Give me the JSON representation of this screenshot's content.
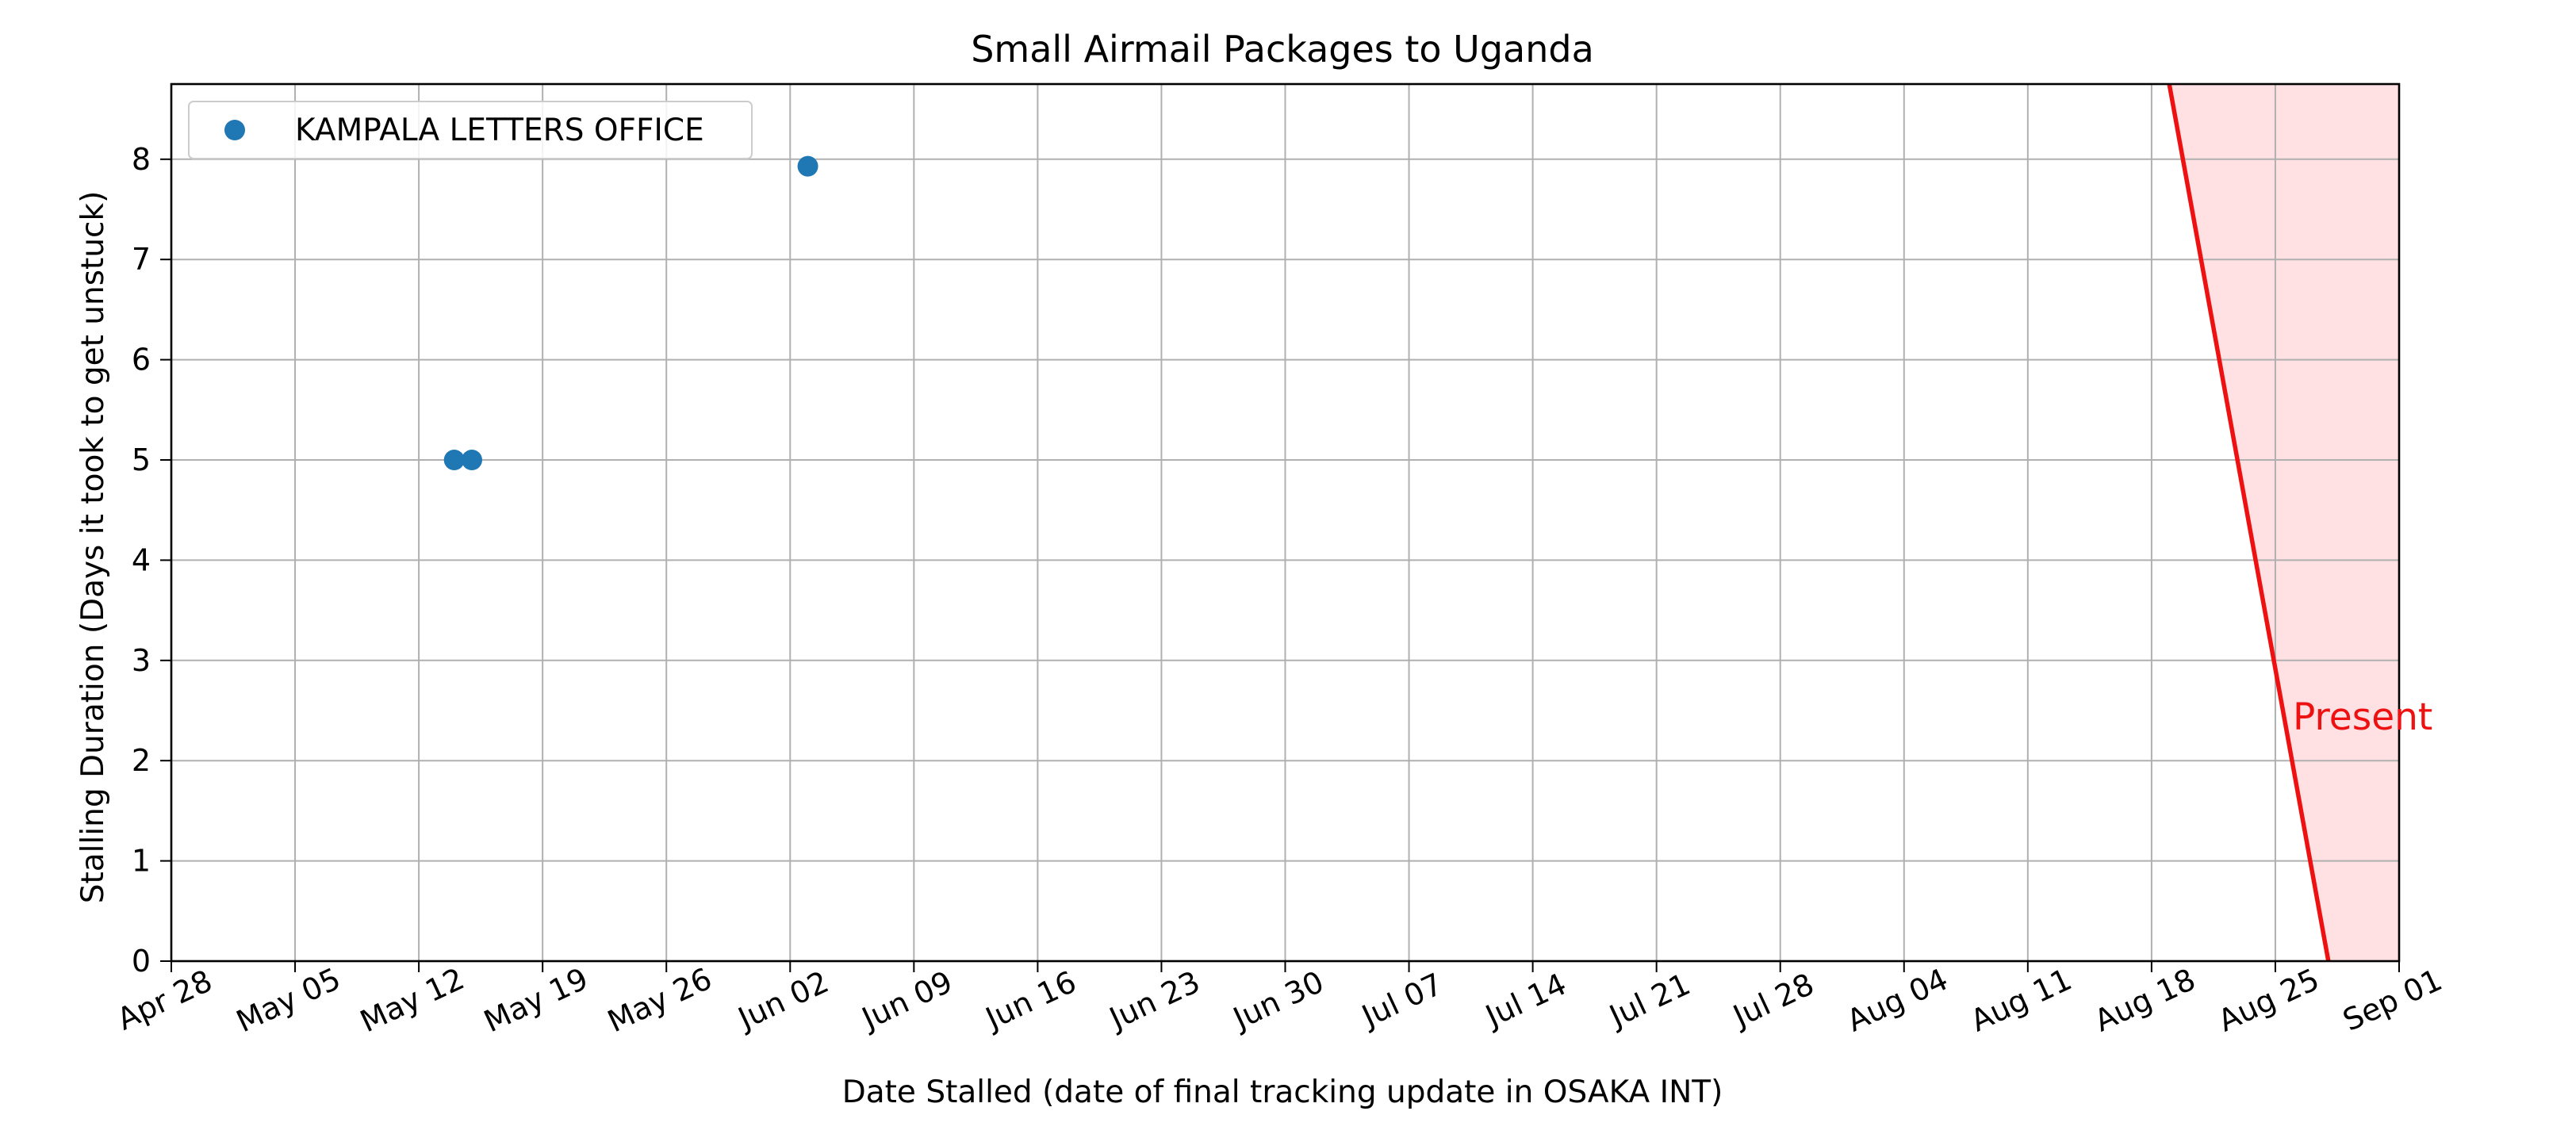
{
  "chart_data": {
    "type": "scatter",
    "title": "Small Airmail Packages to Uganda",
    "xlabel": "Date Stalled (date of final tracking update in OSAKA INT)",
    "ylabel": "Stalling Duration (Days it took to get unstuck)",
    "xlim": [
      "2024-04-28",
      "2024-09-01"
    ],
    "ylim": [
      0,
      8.75
    ],
    "x_ticks": [
      {
        "date": "2024-04-28",
        "label": "Apr 28"
      },
      {
        "date": "2024-05-05",
        "label": "May 05"
      },
      {
        "date": "2024-05-12",
        "label": "May 12"
      },
      {
        "date": "2024-05-19",
        "label": "May 19"
      },
      {
        "date": "2024-05-26",
        "label": "May 26"
      },
      {
        "date": "2024-06-02",
        "label": "Jun 02"
      },
      {
        "date": "2024-06-09",
        "label": "Jun 09"
      },
      {
        "date": "2024-06-16",
        "label": "Jun 16"
      },
      {
        "date": "2024-06-23",
        "label": "Jun 23"
      },
      {
        "date": "2024-06-30",
        "label": "Jun 30"
      },
      {
        "date": "2024-07-07",
        "label": "Jul 07"
      },
      {
        "date": "2024-07-14",
        "label": "Jul 14"
      },
      {
        "date": "2024-07-21",
        "label": "Jul 21"
      },
      {
        "date": "2024-07-28",
        "label": "Jul 28"
      },
      {
        "date": "2024-08-04",
        "label": "Aug 04"
      },
      {
        "date": "2024-08-11",
        "label": "Aug 11"
      },
      {
        "date": "2024-08-18",
        "label": "Aug 18"
      },
      {
        "date": "2024-08-25",
        "label": "Aug 25"
      },
      {
        "date": "2024-09-01",
        "label": "Sep 01"
      }
    ],
    "y_ticks": [
      0,
      1,
      2,
      3,
      4,
      5,
      6,
      7,
      8
    ],
    "grid": true,
    "legend_position": "top-left",
    "series": [
      {
        "name": "KAMPALA LETTERS OFFICE",
        "color": "#1f77b4",
        "points": [
          {
            "x": "2024-05-14",
            "y": 5.0
          },
          {
            "x": "2024-05-15",
            "y": 5.0
          },
          {
            "x": "2024-06-03",
            "y": 7.93
          }
        ]
      }
    ],
    "present_line": {
      "label": "Present",
      "color": "#ee1111",
      "shade_color": "#ffe0e3",
      "top": {
        "x": "2024-08-19",
        "y": 8.75
      },
      "bottom": {
        "x": "2024-08-28",
        "y": 0
      }
    }
  }
}
